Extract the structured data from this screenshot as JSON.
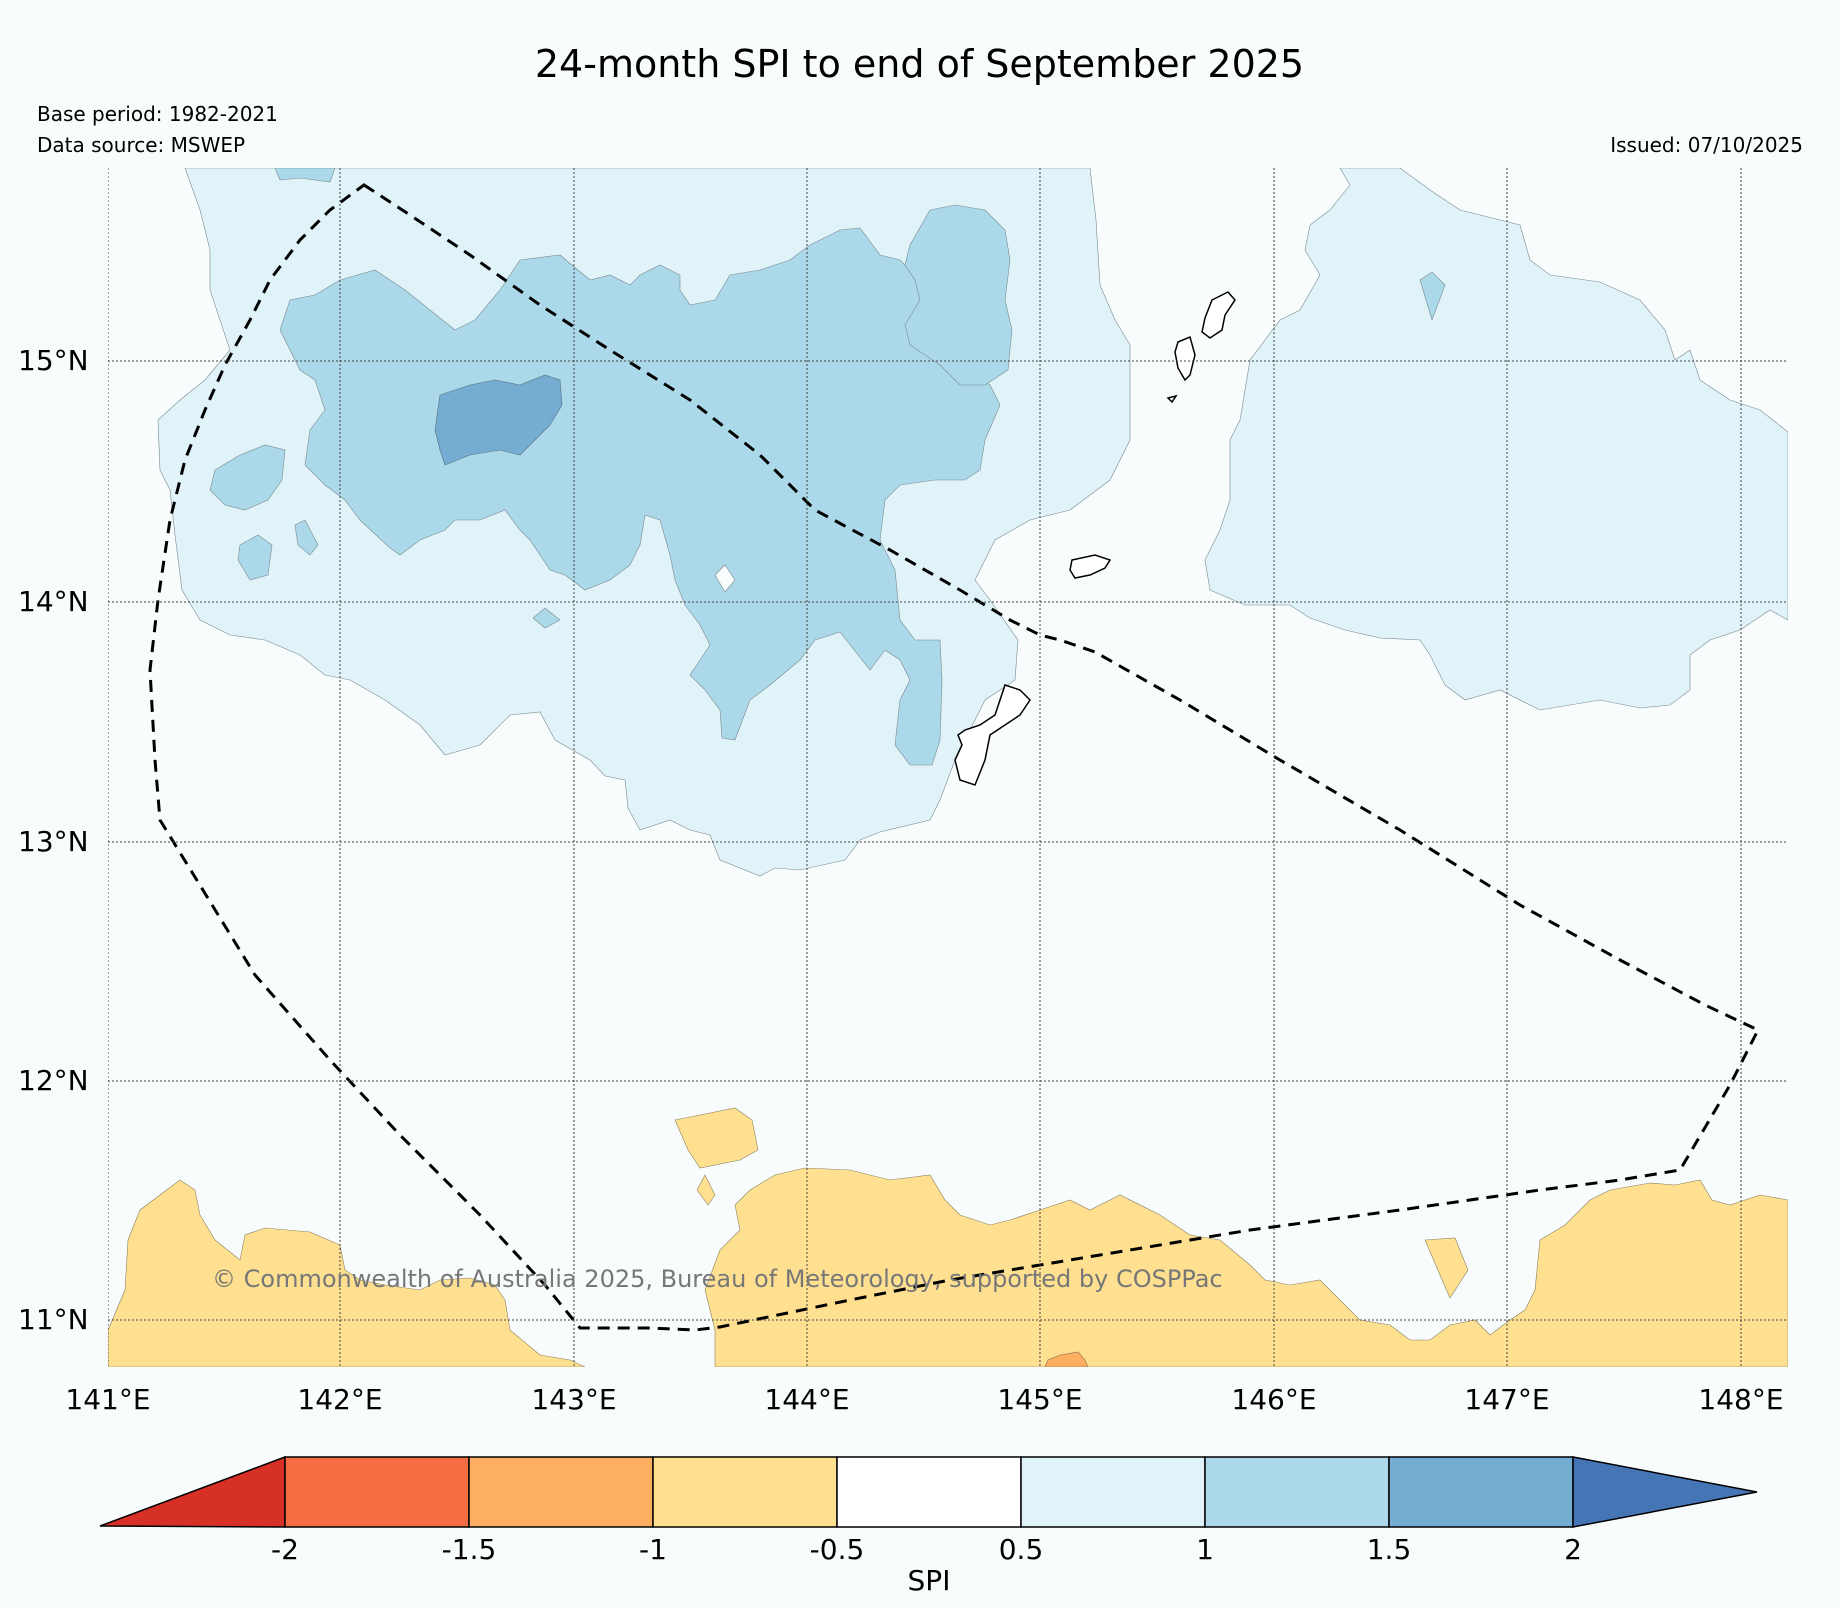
{
  "title": "24-month SPI to end of September 2025",
  "base_period": "Base period: 1982-2021",
  "data_source": "Data source: MSWEP",
  "issued": "Issued: 07/10/2025",
  "copyright": "© Commonwealth of Australia 2025, Bureau of Meteorology, supported by COSPPac",
  "lat_ticks": [
    "15°N",
    "14°N",
    "13°N",
    "12°N",
    "11°N"
  ],
  "lon_ticks": [
    "141°E",
    "142°E",
    "143°E",
    "144°E",
    "145°E",
    "146°E",
    "147°E",
    "148°E"
  ],
  "colorbar": {
    "title": "SPI",
    "tick_labels": [
      "-2",
      "-1.5",
      "-1",
      "-0.5",
      "0.5",
      "1",
      "1.5",
      "2"
    ],
    "colors": [
      "#d73027",
      "#f46d43",
      "#fdae61",
      "#fee090",
      "#ffffff",
      "#e0f3f8",
      "#abd9e9",
      "#74add1",
      "#4575b4"
    ]
  },
  "colors": {
    "spi_0_5_to_1": "#e0f3f8",
    "spi_1_to_1_5": "#abd9e9",
    "spi_1_5_to_2": "#74add1",
    "spi_neg1_to_neg0_5": "#fee090",
    "spi_neg1_5_to_neg1": "#fdae61",
    "background": "#f8fcfd"
  }
}
